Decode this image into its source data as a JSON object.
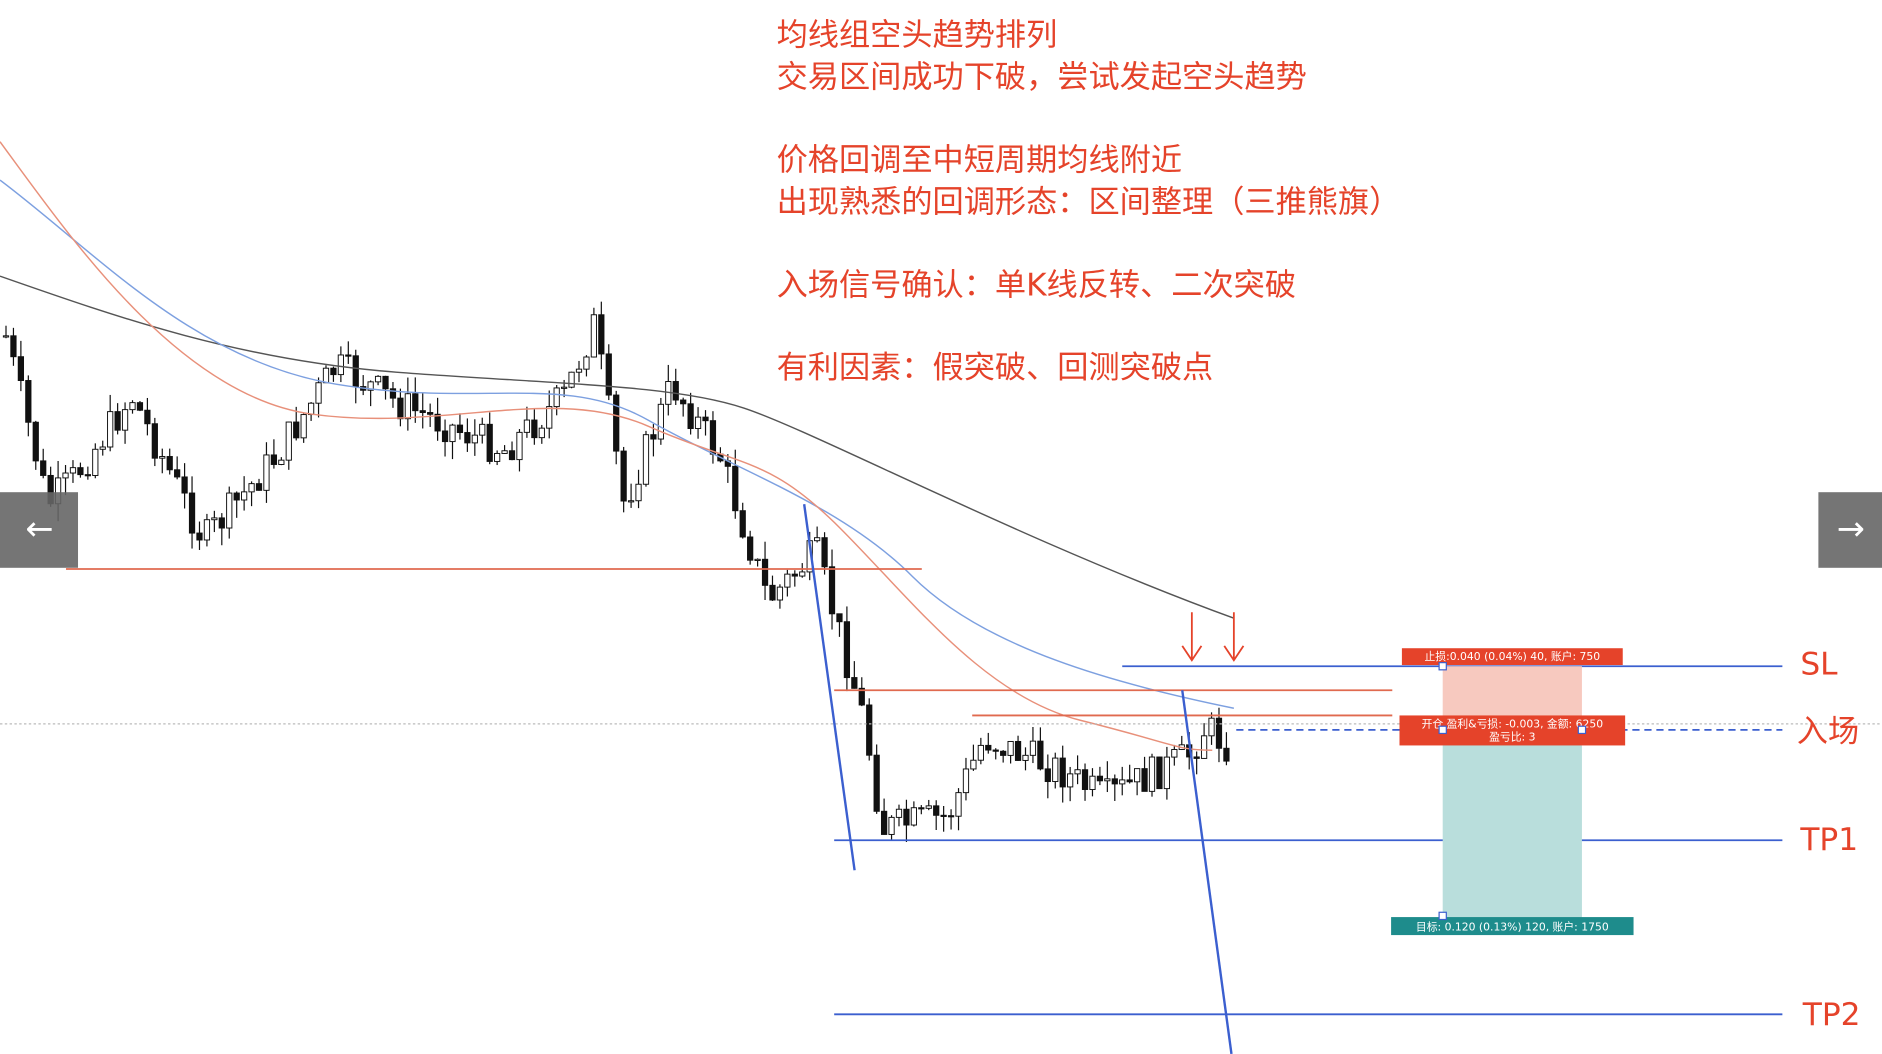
{
  "annotations": [
    "均线组空头趋势排列",
    "交易区间成功下破，尝试发起空头趋势",
    "价格回调至中短周期均线附近",
    "出现熟悉的回调形态：区间整理（三推熊旗）",
    "入场信号确认：单K线反转、二次突破",
    "有利因素：假突破、回测突破点"
  ],
  "levels": {
    "sl": "SL",
    "entry": "入场",
    "tp1": "TP1",
    "tp2": "TP2"
  },
  "position_tool": {
    "stop_label": "止损:0.040 (0.04%) 40, 账户: 750",
    "entry_label": "开仓 盈利&亏损: -0.003, 金额: 6250",
    "ratio_label": "盈亏比: 3",
    "target_label": "目标: 0.120 (0.13%) 120, 账户: 1750"
  },
  "nav": {
    "prev": "←",
    "next": "→"
  }
}
